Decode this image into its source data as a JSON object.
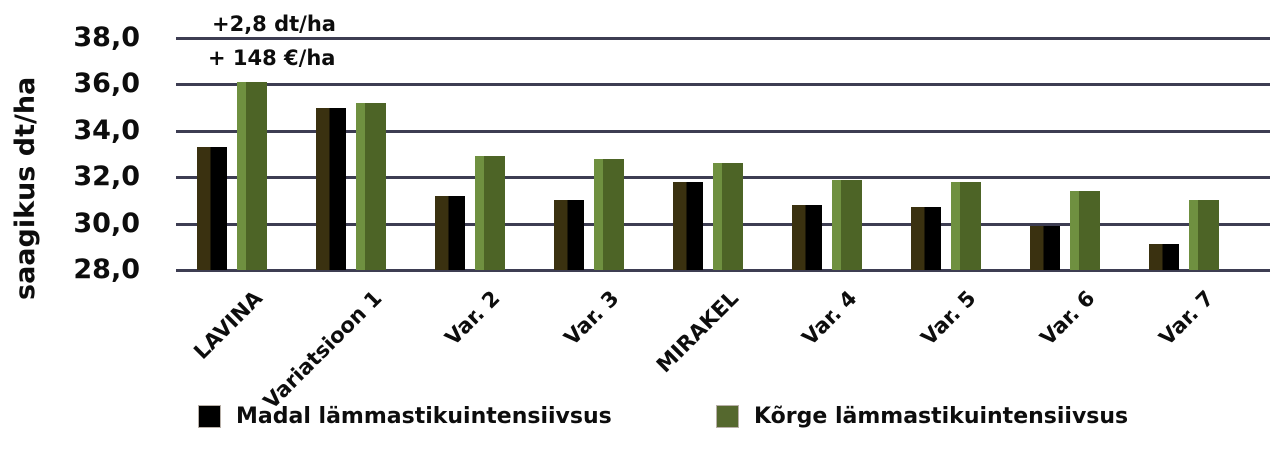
{
  "chart_data": {
    "type": "bar",
    "title": "",
    "xlabel": "",
    "ylabel": "saagikus dt/ha",
    "ylim": [
      28.0,
      38.0
    ],
    "ytick_step": 2.0,
    "ytick_labels": [
      "28,0",
      "30,0",
      "32,0",
      "34,0",
      "36,0",
      "38,0"
    ],
    "grid": true,
    "legend_position": "bottom",
    "decimal_style": "comma",
    "categories": [
      "LAVINA",
      "Variatsioon 1",
      "Var. 2",
      "Var. 3",
      "MIRAKEL",
      "Var. 4",
      "Var. 5",
      "Var. 6",
      "Var. 7"
    ],
    "series": [
      {
        "name": "Madal lämmastikuintensiivsus",
        "color": "#000000",
        "color_light": "#3a3110",
        "values": [
          33.3,
          35.0,
          31.2,
          31.0,
          31.8,
          30.8,
          30.7,
          29.9,
          29.1
        ]
      },
      {
        "name": "Kõrge lämmastikuintensiivsus",
        "color": "#4d6426",
        "color_light": "#6f9040",
        "values": [
          36.1,
          35.2,
          32.9,
          32.8,
          32.6,
          31.9,
          31.8,
          31.4,
          31.0
        ]
      }
    ],
    "annotations": [
      "+2,8 dt/ha",
      "+ 148 €/ha"
    ],
    "gridline_color": "#3d3d52"
  }
}
